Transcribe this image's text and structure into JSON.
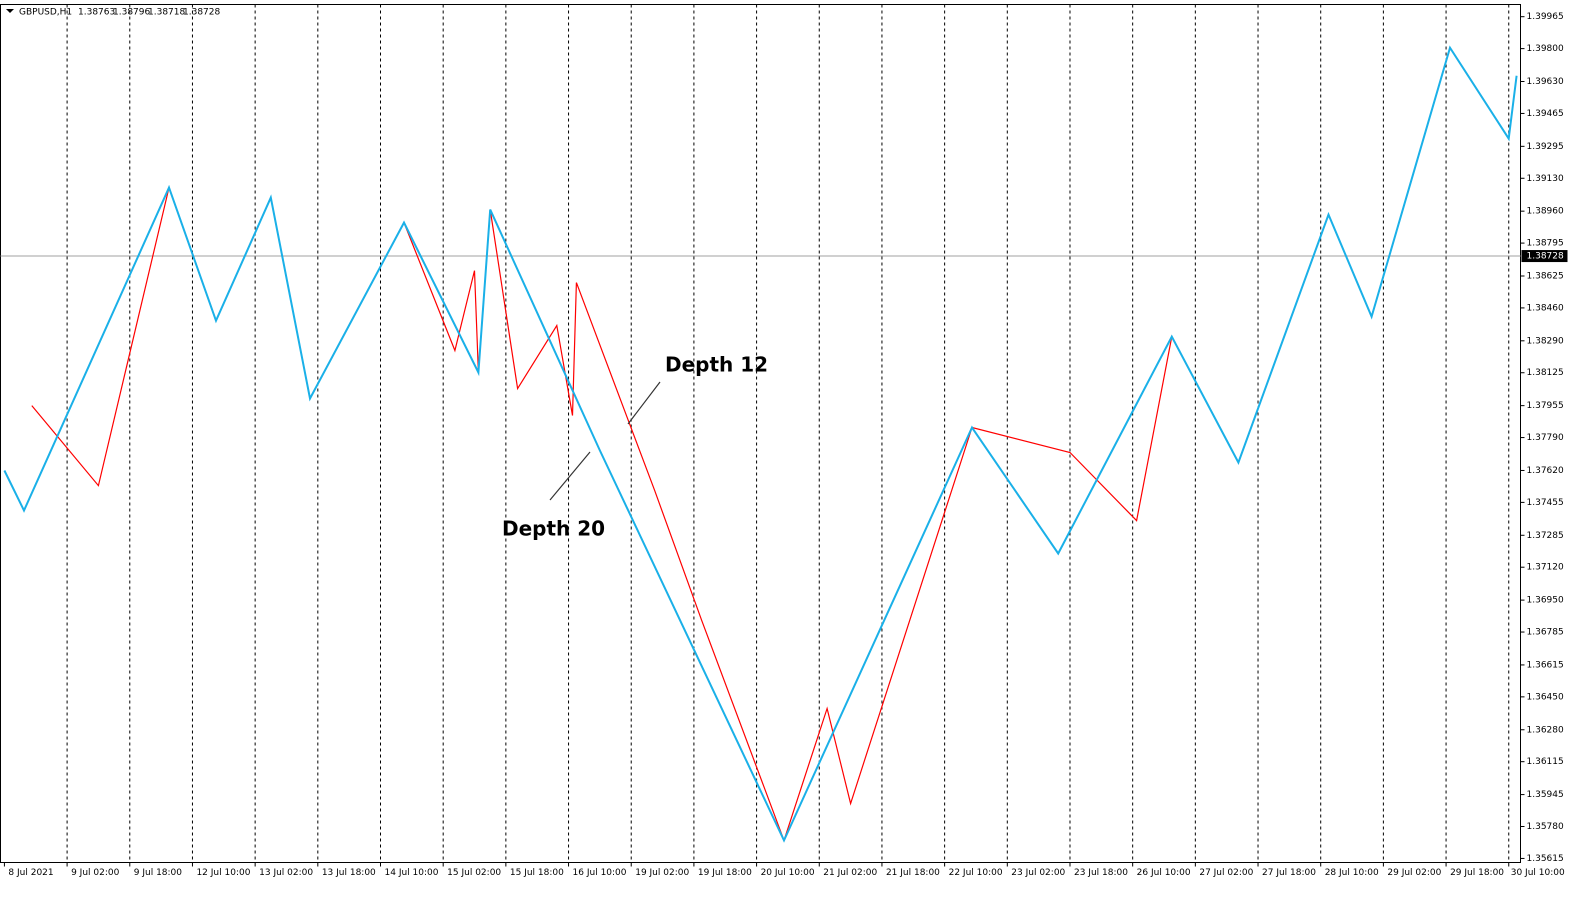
{
  "chart_data": {
    "type": "line",
    "symbol": "GBPUSD,H1",
    "ohlc": [
      1.38763,
      1.38796,
      1.38718,
      1.38728
    ],
    "annotations": [
      "Depth 12",
      "Depth 20"
    ],
    "xlim": [
      -1,
      387
    ],
    "ylim": [
      1.35594,
      1.40028
    ],
    "grid": true,
    "xticks": [
      {
        "value": 0,
        "label": "8 Jul 2021"
      },
      {
        "value": 16,
        "label": "9 Jul 02:00"
      },
      {
        "value": 32,
        "label": "9 Jul 18:00"
      },
      {
        "value": 48,
        "label": "12 Jul 10:00"
      },
      {
        "value": 64,
        "label": "13 Jul 02:00"
      },
      {
        "value": 80,
        "label": "13 Jul 18:00"
      },
      {
        "value": 96,
        "label": "14 Jul 10:00"
      },
      {
        "value": 112,
        "label": "15 Jul 02:00"
      },
      {
        "value": 128,
        "label": "15 Jul 18:00"
      },
      {
        "value": 144,
        "label": "16 Jul 10:00"
      },
      {
        "value": 160,
        "label": "19 Jul 02:00"
      },
      {
        "value": 176,
        "label": "19 Jul 18:00"
      },
      {
        "value": 192,
        "label": "20 Jul 10:00"
      },
      {
        "value": 208,
        "label": "21 Jul 02:00"
      },
      {
        "value": 224,
        "label": "21 Jul 18:00"
      },
      {
        "value": 240,
        "label": "22 Jul 10:00"
      },
      {
        "value": 256,
        "label": "23 Jul 02:00"
      },
      {
        "value": 272,
        "label": "23 Jul 18:00"
      },
      {
        "value": 288,
        "label": "26 Jul 10:00"
      },
      {
        "value": 304,
        "label": "27 Jul 02:00"
      },
      {
        "value": 320,
        "label": "27 Jul 18:00"
      },
      {
        "value": 336,
        "label": "28 Jul 10:00"
      },
      {
        "value": 352,
        "label": "29 Jul 02:00"
      },
      {
        "value": 368,
        "label": "29 Jul 18:00"
      },
      {
        "value": 384,
        "label": "30 Jul 10:00"
      }
    ],
    "yticks": [
      1.39965,
      {
        "value": 1.398,
        "label": "1.39800"
      },
      {
        "value": 1.3963,
        "label": "1.39630"
      },
      1.39465,
      1.39295,
      {
        "value": 1.3913,
        "label": "1.39130"
      },
      {
        "value": 1.3896,
        "label": "1.38960"
      },
      1.38795,
      1.38625,
      {
        "value": 1.3846,
        "label": "1.38460"
      },
      {
        "value": 1.3829,
        "label": "1.38290"
      },
      1.38125,
      1.37955,
      {
        "value": 1.3779,
        "label": "1.37790"
      },
      {
        "value": 1.3762,
        "label": "1.37620"
      },
      1.37455,
      1.37285,
      {
        "value": 1.3712,
        "label": "1.37120"
      },
      {
        "value": 1.3695,
        "label": "1.36950"
      },
      1.36785,
      1.36615,
      {
        "value": 1.3645,
        "label": "1.36450"
      },
      {
        "value": 1.3628,
        "label": "1.36280"
      },
      1.36115,
      1.35945,
      {
        "value": 1.3578,
        "label": "1.35780"
      },
      1.35615
    ],
    "series": [
      {
        "color": "#ff0000",
        "x": [
          7,
          24,
          42,
          54,
          68,
          78,
          102,
          115,
          120,
          121,
          124,
          131,
          141,
          145,
          146,
          166,
          178,
          199,
          210,
          216,
          247,
          272,
          289,
          298,
          315,
          338,
          349,
          369,
          384
        ],
        "values": [
          1.37955,
          1.37542,
          1.39082,
          1.38394,
          1.3903,
          1.37992,
          1.38901,
          1.3824,
          1.38653,
          1.38126,
          1.38968,
          1.38043,
          1.38369,
          1.37904,
          1.38591,
          1.37516,
          1.36845,
          1.35708,
          1.3639,
          1.35899,
          1.37842,
          1.37713,
          1.37361,
          1.38312,
          1.37661,
          1.38942,
          1.38415,
          1.39805,
          1.39335
        ]
      },
      {
        "color": "#1ab0e8",
        "x": [
          0,
          5,
          42,
          54,
          68,
          78,
          102,
          121,
          124,
          152,
          199,
          247,
          269,
          298,
          315,
          338,
          349,
          369,
          384,
          386
        ],
        "values": [
          1.3762,
          1.37413,
          1.39082,
          1.38394,
          1.3903,
          1.37992,
          1.38901,
          1.38126,
          1.38968,
          1.37723,
          1.35708,
          1.37842,
          1.37191,
          1.38312,
          1.37661,
          1.38942,
          1.38415,
          1.39805,
          1.39335,
          1.3966
        ]
      }
    ]
  }
}
